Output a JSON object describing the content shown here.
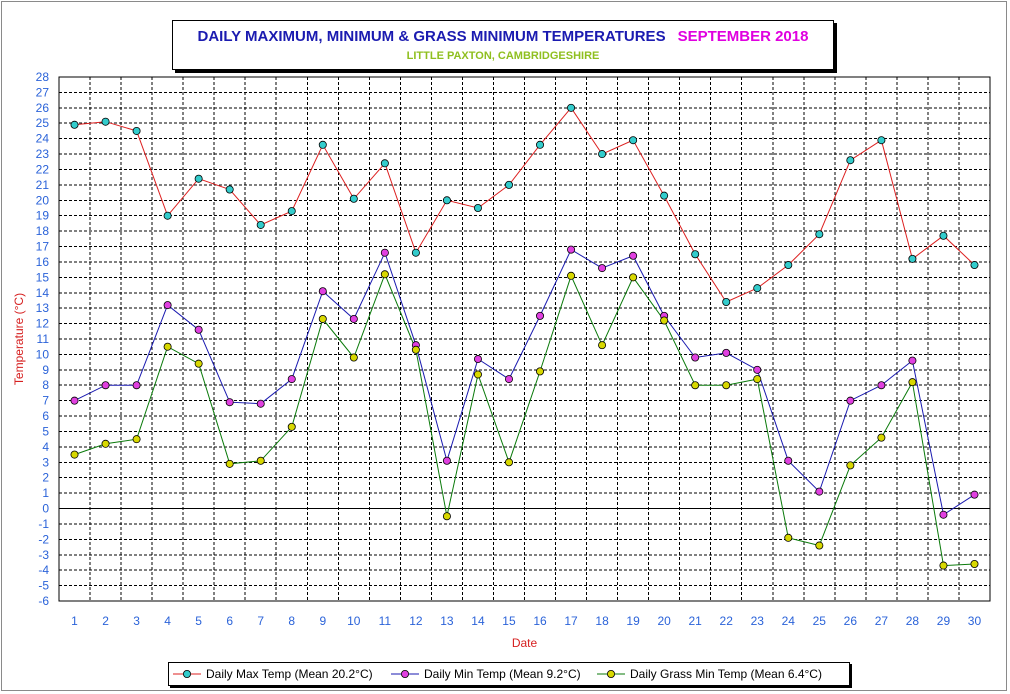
{
  "chart_data": {
    "type": "line",
    "title": "DAILY MAXIMUM, MINIMUM & GRASS MINIMUM TEMPERATURES",
    "title_month": "SEPTEMBER 2018",
    "subtitle": "LITTLE PAXTON, CAMBRIDGESHIRE",
    "xlabel": "Date",
    "ylabel": "Temperature (°C)",
    "ylim": [
      -6,
      28
    ],
    "grid": true,
    "legend_position": "bottom",
    "x": [
      1,
      2,
      3,
      4,
      5,
      6,
      7,
      8,
      9,
      10,
      11,
      12,
      13,
      14,
      15,
      16,
      17,
      18,
      19,
      20,
      21,
      22,
      23,
      24,
      25,
      26,
      27,
      28,
      29,
      30
    ],
    "series": [
      {
        "name": "Daily Max Temp (Mean 20.2°C)",
        "line_color": "#dd2020",
        "marker_color": "#33cccc",
        "values": [
          24.9,
          25.1,
          24.5,
          19.0,
          21.4,
          20.7,
          18.4,
          19.3,
          23.6,
          20.1,
          22.4,
          16.6,
          20.0,
          19.5,
          21.0,
          23.6,
          26.0,
          23.0,
          23.9,
          20.3,
          16.5,
          13.4,
          14.3,
          15.8,
          17.8,
          22.6,
          23.9,
          16.2,
          17.7,
          15.8
        ]
      },
      {
        "name": "Daily Min Temp (Mean 9.2°C)",
        "line_color": "#1a1ab0",
        "marker_color": "#e040e0",
        "values": [
          7.0,
          8.0,
          8.0,
          13.2,
          11.6,
          6.9,
          6.8,
          8.4,
          14.1,
          12.3,
          16.6,
          10.6,
          3.1,
          9.7,
          8.4,
          12.5,
          16.8,
          15.6,
          16.4,
          12.5,
          9.8,
          10.1,
          9.0,
          3.1,
          1.1,
          7.0,
          8.0,
          9.6,
          -0.4,
          0.9
        ]
      },
      {
        "name": "Daily Grass Min Temp (Mean 6.4°C)",
        "line_color": "#0a7a0a",
        "marker_color": "#d8d800",
        "values": [
          3.5,
          4.2,
          4.5,
          10.5,
          9.4,
          2.9,
          3.1,
          5.3,
          12.3,
          9.8,
          15.2,
          10.3,
          -0.5,
          8.7,
          3.0,
          8.9,
          15.1,
          10.6,
          15.0,
          12.2,
          8.0,
          8.0,
          8.4,
          -1.9,
          -2.4,
          2.8,
          4.6,
          8.2,
          -3.7,
          -3.6
        ]
      }
    ]
  }
}
